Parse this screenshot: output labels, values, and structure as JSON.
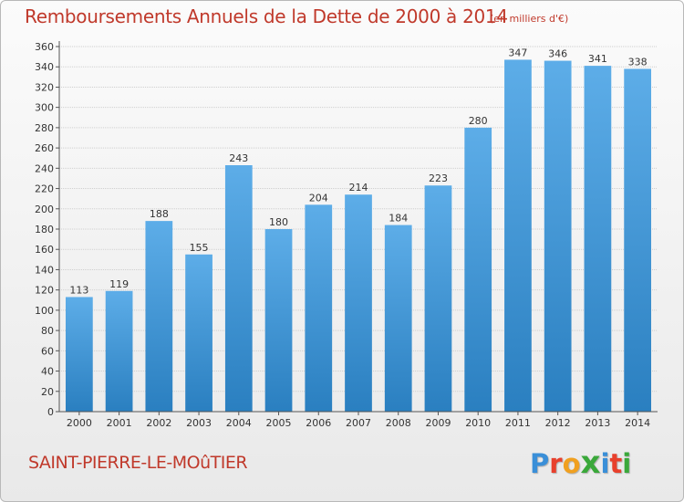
{
  "header": {
    "title": "Remboursements Annuels de la Dette de 2000 à 2014",
    "unit": "(en milliers d'€)"
  },
  "footer": {
    "commune": "SAINT-PIERRE-LE-MOûTIER",
    "logo": "Proxiti",
    "logo_colors": [
      "#3a8fd8",
      "#e8402c",
      "#f0a020",
      "#3aa83a",
      "#3a8fd8",
      "#e8402c",
      "#3aa83a"
    ]
  },
  "colors": {
    "bar_light": "#5dade8",
    "bar_dark": "#2a7fc0",
    "grid": "#cfcfcf",
    "axis": "#555555",
    "text": "#333333",
    "accent": "#c0392b"
  },
  "chart_data": {
    "type": "bar",
    "title": "Remboursements Annuels de la Dette de 2000 à 2014",
    "xlabel": "",
    "ylabel": "",
    "categories": [
      "2000",
      "2001",
      "2002",
      "2003",
      "2004",
      "2005",
      "2006",
      "2007",
      "2008",
      "2009",
      "2010",
      "2011",
      "2012",
      "2013",
      "2014"
    ],
    "values": [
      113,
      119,
      188,
      155,
      243,
      180,
      204,
      214,
      184,
      223,
      280,
      347,
      346,
      341,
      338
    ],
    "ylim": [
      0,
      360
    ],
    "ytick_step": 20,
    "grid": true,
    "legend": "none"
  }
}
